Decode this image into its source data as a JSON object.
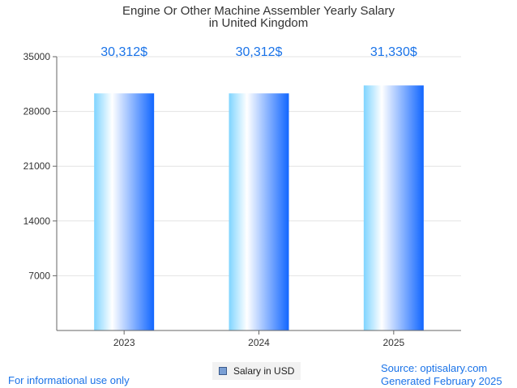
{
  "chart_data": {
    "type": "bar",
    "title_lines": [
      "Engine Or Other Machine Assembler Yearly Salary",
      "in United Kingdom"
    ],
    "categories": [
      "2023",
      "2024",
      "2025"
    ],
    "values": [
      30312,
      30312,
      31330
    ],
    "value_labels": [
      "30,312$",
      "30,312$",
      "31,330$"
    ],
    "yticks": [
      7000,
      14000,
      21000,
      28000,
      35000
    ],
    "ylim": [
      0,
      35000
    ],
    "xlabel": "",
    "ylabel": "",
    "grid": true,
    "legend": {
      "label": "Salary in USD",
      "position": "bottom-center"
    },
    "colors": {
      "bar_light": "#7fd4ff",
      "bar_mid": "#ffffff",
      "bar_dark": "#1166ff",
      "label": "#1a73e8",
      "legend_swatch": "#7a9fd4"
    }
  },
  "footer": {
    "disclaimer": "For informational use only",
    "source": "Source: optisalary.com",
    "generated": "Generated February 2025"
  }
}
